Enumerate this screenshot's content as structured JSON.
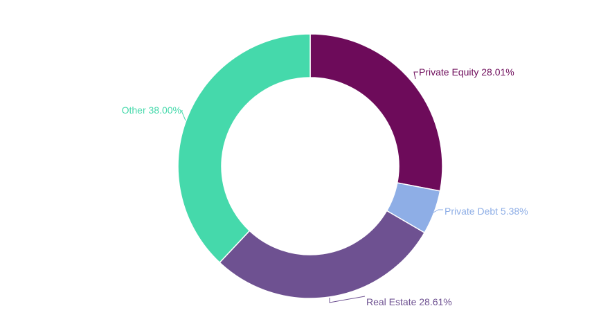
{
  "chart_data": {
    "type": "pie",
    "variant": "donut",
    "title": "",
    "slices": [
      {
        "name": "Private Equity",
        "value": 28.01,
        "label": "Private Equity 28.01%",
        "color": "#6d0b5a"
      },
      {
        "name": "Private Debt",
        "value": 5.38,
        "label": "Private Debt 5.38%",
        "color": "#8eaee6"
      },
      {
        "name": "Real Estate",
        "value": 28.61,
        "label": "Real Estate 28.61%",
        "color": "#6e5191"
      },
      {
        "name": "Other",
        "value": 38.0,
        "label": "Other 38.00%",
        "color": "#45d9ab"
      }
    ],
    "start_angle": "12 o'clock",
    "direction": "clockwise",
    "legend": "none"
  }
}
